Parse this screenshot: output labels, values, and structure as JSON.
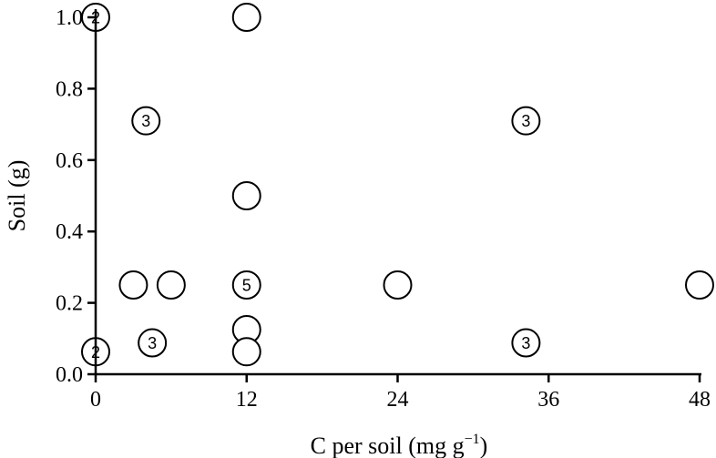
{
  "chart_data": {
    "type": "scatter",
    "xlabel": "C per soil (mg g",
    "xlabel_sup": "−1",
    "xlabel_close": ")",
    "ylabel": "Soil (g)",
    "xlim": [
      0,
      48
    ],
    "ylim": [
      0,
      1.0
    ],
    "x_ticks": [
      {
        "value": 0,
        "label": "0"
      },
      {
        "value": 12,
        "label": "12"
      },
      {
        "value": 24,
        "label": "24"
      },
      {
        "value": 36,
        "label": "36"
      },
      {
        "value": 48,
        "label": "48"
      }
    ],
    "y_ticks": [
      {
        "value": 0.0,
        "label": "0.0"
      },
      {
        "value": 0.2,
        "label": "0.2"
      },
      {
        "value": 0.4,
        "label": "0.4"
      },
      {
        "value": 0.6,
        "label": "0.6"
      },
      {
        "value": 0.8,
        "label": "0.8"
      },
      {
        "value": 1.0,
        "label": "1.0"
      }
    ],
    "grid": false,
    "marker": "open-circle",
    "points": [
      {
        "x": 0,
        "y": 1.0,
        "label": "2"
      },
      {
        "x": 12,
        "y": 1.0,
        "label": ""
      },
      {
        "x": 4,
        "y": 0.71,
        "label": "3"
      },
      {
        "x": 34.2,
        "y": 0.71,
        "label": "3"
      },
      {
        "x": 12,
        "y": 0.5,
        "label": ""
      },
      {
        "x": 3,
        "y": 0.25,
        "label": ""
      },
      {
        "x": 6,
        "y": 0.25,
        "label": ""
      },
      {
        "x": 12,
        "y": 0.25,
        "label": "5"
      },
      {
        "x": 24,
        "y": 0.25,
        "label": ""
      },
      {
        "x": 48,
        "y": 0.25,
        "label": ""
      },
      {
        "x": 12,
        "y": 0.125,
        "label": ""
      },
      {
        "x": 4.5,
        "y": 0.088,
        "label": "3"
      },
      {
        "x": 34.2,
        "y": 0.088,
        "label": "3"
      },
      {
        "x": 0,
        "y": 0.063,
        "label": "2"
      },
      {
        "x": 12,
        "y": 0.063,
        "label": ""
      }
    ]
  }
}
